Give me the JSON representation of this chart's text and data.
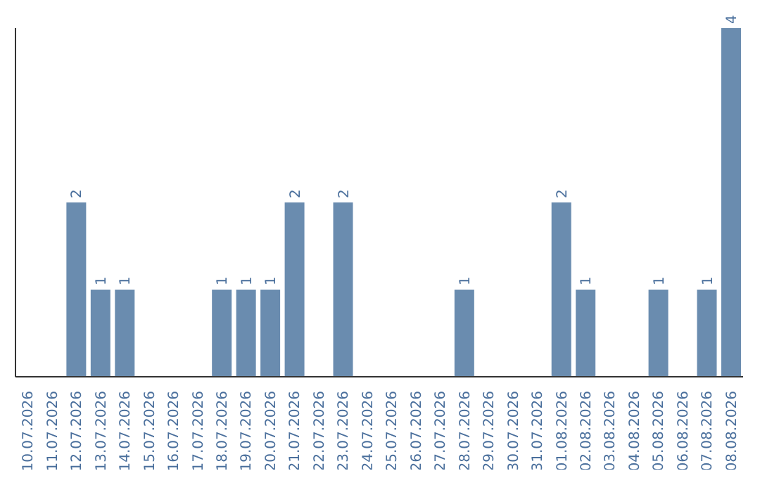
{
  "chart_data": {
    "type": "bar",
    "categories": [
      "10.07.2026",
      "11.07.2026",
      "12.07.2026",
      "13.07.2026",
      "14.07.2026",
      "15.07.2026",
      "16.07.2026",
      "17.07.2026",
      "18.07.2026",
      "19.07.2026",
      "20.07.2026",
      "21.07.2026",
      "22.07.2026",
      "23.07.2026",
      "24.07.2026",
      "25.07.2026",
      "26.07.2026",
      "27.07.2026",
      "28.07.2026",
      "29.07.2026",
      "30.07.2026",
      "31.07.2026",
      "01.08.2026",
      "02.08.2026",
      "03.08.2026",
      "04.08.2026",
      "05.08.2026",
      "06.08.2026",
      "07.08.2026",
      "08.08.2026"
    ],
    "values": [
      0,
      0,
      2,
      1,
      1,
      0,
      0,
      0,
      1,
      1,
      1,
      2,
      0,
      2,
      0,
      0,
      0,
      0,
      1,
      0,
      0,
      0,
      2,
      1,
      0,
      0,
      1,
      0,
      1,
      4
    ],
    "value_labels": [
      null,
      null,
      "2",
      "1",
      "1",
      null,
      null,
      null,
      "1",
      "1",
      "1",
      "2",
      null,
      "2",
      null,
      null,
      null,
      null,
      "1",
      null,
      null,
      null,
      "2",
      "1",
      null,
      null,
      "1",
      null,
      "1",
      "4"
    ],
    "color": "#6a8caf",
    "tick_labels": "x",
    "grid": false
  }
}
